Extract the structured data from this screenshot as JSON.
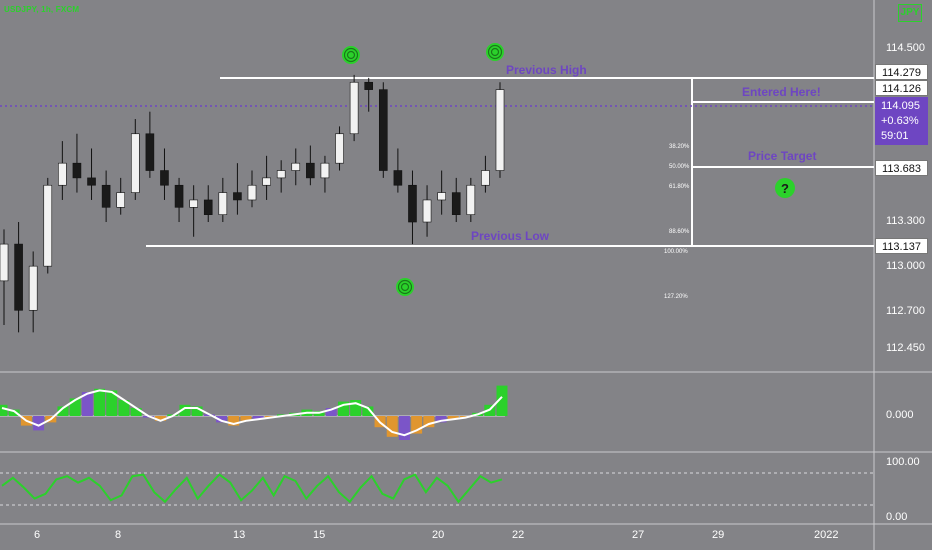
{
  "header": {
    "symbol": "USDJPY, 1h, FXCM",
    "currency_button": "JPY"
  },
  "price_axis": {
    "ticks": [
      "114.500",
      "113.300",
      "113.000",
      "112.700",
      "112.450"
    ],
    "boxes": [
      {
        "value": "114.279",
        "for": "previous_high"
      },
      {
        "value": "114.126",
        "for": "entry"
      },
      {
        "value": "113.683",
        "for": "target"
      },
      {
        "value": "113.137",
        "for": "previous_low"
      }
    ],
    "current": {
      "price": "114.095",
      "change": "+0.63%",
      "countdown": "59:01"
    }
  },
  "indicator1_axis": {
    "tick": "0.000"
  },
  "indicator2_axis": {
    "ticks": [
      "100.00",
      "0.00"
    ]
  },
  "time_axis": {
    "ticks": [
      "6",
      "8",
      "13",
      "15",
      "20",
      "22",
      "27",
      "29",
      "2022"
    ]
  },
  "annotations": {
    "previous_high": "Previous High",
    "entered_here": "Entered Here!",
    "price_target": "Price Target",
    "previous_low": "Previous Low",
    "question_mark": "?"
  },
  "fib_levels": [
    "38.20%",
    "50.00%",
    "61.80%",
    "88.60%",
    "100.00%",
    "127.20%"
  ],
  "colors": {
    "background": "#838387",
    "accent_green": "#2bd12b",
    "label_purple": "#6e46c2",
    "histogram_purple": "#7b55c8",
    "histogram_orange": "#e0962f"
  },
  "chart_data": [
    {
      "type": "candlestick",
      "symbol": "USDJPY",
      "interval": "1h",
      "ohlc": [
        [
          112.9,
          113.25,
          112.6,
          113.15
        ],
        [
          113.15,
          113.3,
          112.55,
          112.7
        ],
        [
          112.7,
          113.1,
          112.55,
          113.0
        ],
        [
          113.0,
          113.6,
          112.95,
          113.55
        ],
        [
          113.55,
          113.85,
          113.45,
          113.7
        ],
        [
          113.7,
          113.9,
          113.5,
          113.6
        ],
        [
          113.6,
          113.8,
          113.45,
          113.55
        ],
        [
          113.55,
          113.65,
          113.3,
          113.4
        ],
        [
          113.4,
          113.6,
          113.35,
          113.5
        ],
        [
          113.5,
          114.0,
          113.45,
          113.9
        ],
        [
          113.9,
          114.05,
          113.6,
          113.65
        ],
        [
          113.65,
          113.8,
          113.45,
          113.55
        ],
        [
          113.55,
          113.6,
          113.3,
          113.4
        ],
        [
          113.4,
          113.55,
          113.2,
          113.45
        ],
        [
          113.45,
          113.55,
          113.3,
          113.35
        ],
        [
          113.35,
          113.6,
          113.3,
          113.5
        ],
        [
          113.5,
          113.7,
          113.35,
          113.45
        ],
        [
          113.45,
          113.65,
          113.4,
          113.55
        ],
        [
          113.55,
          113.75,
          113.45,
          113.6
        ],
        [
          113.6,
          113.72,
          113.5,
          113.65
        ],
        [
          113.65,
          113.8,
          113.55,
          113.7
        ],
        [
          113.7,
          113.82,
          113.55,
          113.6
        ],
        [
          113.6,
          113.75,
          113.5,
          113.7
        ],
        [
          113.7,
          113.95,
          113.65,
          113.9
        ],
        [
          113.9,
          114.3,
          113.85,
          114.25
        ],
        [
          114.25,
          114.28,
          114.05,
          114.2
        ],
        [
          114.2,
          114.25,
          113.6,
          113.65
        ],
        [
          113.65,
          113.8,
          113.5,
          113.55
        ],
        [
          113.55,
          113.65,
          113.15,
          113.3
        ],
        [
          113.3,
          113.55,
          113.2,
          113.45
        ],
        [
          113.45,
          113.65,
          113.35,
          113.5
        ],
        [
          113.5,
          113.6,
          113.3,
          113.35
        ],
        [
          113.35,
          113.6,
          113.3,
          113.55
        ],
        [
          113.55,
          113.75,
          113.5,
          113.65
        ],
        [
          113.65,
          114.25,
          113.6,
          114.2
        ]
      ],
      "price_axis_ticks": [
        114.5,
        113.3,
        113.0,
        112.7,
        112.45
      ],
      "horizontal_levels": {
        "previous_high": 114.279,
        "entry": 114.126,
        "target": 113.683,
        "previous_low": 113.137,
        "current": 114.095
      },
      "fibonacci": [
        "38.20%",
        "50.00%",
        "61.80%",
        "88.60%",
        "100.00%",
        "127.20%"
      ]
    },
    {
      "type": "histogram_line",
      "name": "momentum",
      "values": [
        0.35,
        0.2,
        -0.3,
        -0.45,
        -0.2,
        0.3,
        0.55,
        0.75,
        0.85,
        0.8,
        0.5,
        0.25,
        -0.05,
        -0.15,
        0.05,
        0.35,
        0.3,
        0.05,
        -0.2,
        -0.3,
        -0.15,
        -0.1,
        -0.05,
        0.05,
        0.1,
        0.2,
        0.15,
        0.25,
        0.45,
        0.5,
        0.3,
        -0.35,
        -0.65,
        -0.75,
        -0.55,
        -0.35,
        -0.2,
        -0.1,
        -0.05,
        0.1,
        0.35,
        0.95
      ],
      "line": [
        0.25,
        0.15,
        -0.15,
        -0.3,
        -0.1,
        0.25,
        0.5,
        0.7,
        0.8,
        0.75,
        0.5,
        0.25,
        0.0,
        -0.15,
        0.0,
        0.25,
        0.25,
        0.05,
        -0.15,
        -0.25,
        -0.15,
        -0.1,
        -0.05,
        0.0,
        0.05,
        0.1,
        0.1,
        0.2,
        0.35,
        0.4,
        0.25,
        -0.2,
        -0.5,
        -0.6,
        -0.45,
        -0.25,
        -0.15,
        -0.1,
        -0.05,
        0.05,
        0.2,
        0.6
      ],
      "zero_line": 0.0
    },
    {
      "type": "line",
      "name": "oscillator",
      "ylim": [
        0,
        100
      ],
      "values": [
        60,
        85,
        55,
        20,
        35,
        80,
        90,
        70,
        85,
        60,
        15,
        30,
        90,
        95,
        40,
        10,
        50,
        85,
        20,
        60,
        95,
        70,
        15,
        45,
        85,
        30,
        90,
        75,
        20,
        60,
        90,
        40,
        10,
        55,
        90,
        35,
        20,
        80,
        95,
        40,
        85,
        60,
        10,
        50,
        90,
        70,
        80
      ]
    }
  ]
}
